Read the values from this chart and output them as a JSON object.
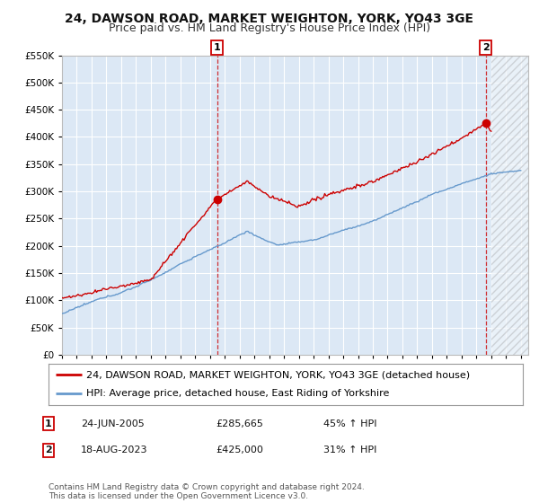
{
  "title": "24, DAWSON ROAD, MARKET WEIGHTON, YORK, YO43 3GE",
  "subtitle": "Price paid vs. HM Land Registry's House Price Index (HPI)",
  "ylim": [
    0,
    550000
  ],
  "yticks": [
    0,
    50000,
    100000,
    150000,
    200000,
    250000,
    300000,
    350000,
    400000,
    450000,
    500000,
    550000
  ],
  "ytick_labels": [
    "£0",
    "£50K",
    "£100K",
    "£150K",
    "£200K",
    "£250K",
    "£300K",
    "£350K",
    "£400K",
    "£450K",
    "£500K",
    "£550K"
  ],
  "xlim_start": 1995.0,
  "xlim_end": 2026.5,
  "background_color": "#ffffff",
  "plot_bg_color": "#dce8f5",
  "grid_color": "#ffffff",
  "red_line_color": "#cc0000",
  "blue_line_color": "#6699cc",
  "marker1_x": 2005.48,
  "marker1_y": 285665,
  "marker2_x": 2023.63,
  "marker2_y": 425000,
  "dashed_x1": 2005.48,
  "dashed_x2": 2023.63,
  "hatch_start": 2024.0,
  "legend_label_red": "24, DAWSON ROAD, MARKET WEIGHTON, YORK, YO43 3GE (detached house)",
  "legend_label_blue": "HPI: Average price, detached house, East Riding of Yorkshire",
  "annotation1_num": "1",
  "annotation1_date": "24-JUN-2005",
  "annotation1_price": "£285,665",
  "annotation1_hpi": "45% ↑ HPI",
  "annotation2_num": "2",
  "annotation2_date": "18-AUG-2023",
  "annotation2_price": "£425,000",
  "annotation2_hpi": "31% ↑ HPI",
  "footer": "Contains HM Land Registry data © Crown copyright and database right 2024.\nThis data is licensed under the Open Government Licence v3.0.",
  "title_fontsize": 10,
  "subtitle_fontsize": 9,
  "tick_fontsize": 7.5,
  "legend_fontsize": 8,
  "annotation_fontsize": 8,
  "footer_fontsize": 6.5
}
